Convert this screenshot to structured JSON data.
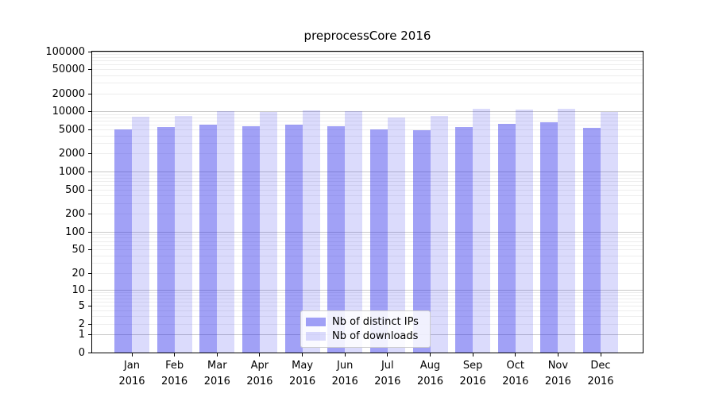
{
  "title": "preprocessCore 2016",
  "chart_data": {
    "type": "bar",
    "title": "preprocessCore 2016",
    "categories": [
      "Jan",
      "Feb",
      "Mar",
      "Apr",
      "May",
      "Jun",
      "Jul",
      "Aug",
      "Sep",
      "Oct",
      "Nov",
      "Dec"
    ],
    "year_label": "2016",
    "x_tick_labels": [
      "Jan 2016",
      "Feb 2016",
      "Mar 2016",
      "Apr 2016",
      "May 2016",
      "Jun 2016",
      "Jul 2016",
      "Aug 2016",
      "Sep 2016",
      "Oct 2016",
      "Nov 2016",
      "Dec 2016"
    ],
    "series": [
      {
        "name": "Nb of distinct IPs",
        "color": "#a2a2f0",
        "color_rgba": "rgba(40,40,235,0.44)",
        "values": [
          5100,
          5600,
          6200,
          5700,
          6200,
          5800,
          5100,
          4900,
          5600,
          6300,
          6800,
          5400
        ]
      },
      {
        "name": "Nb of downloads",
        "color": "#dadaf8",
        "color_rgba": "rgba(40,40,235,0.17)",
        "values": [
          8300,
          8700,
          10300,
          10000,
          10700,
          10200,
          8100,
          8500,
          11200,
          10900,
          11400,
          9900
        ]
      }
    ],
    "y_ticks": [
      0,
      1,
      2,
      5,
      10,
      20,
      50,
      100,
      200,
      500,
      1000,
      2000,
      5000,
      10000,
      20000,
      50000,
      100000
    ],
    "y_scale": "log1p",
    "ylim": [
      0,
      100000
    ],
    "grid": "both",
    "legend_position": "bottom-center-inside",
    "xlabel": "",
    "ylabel": ""
  },
  "legend": [
    {
      "label": "Nb of distinct IPs"
    },
    {
      "label": "Nb of downloads"
    }
  ],
  "colors": {
    "grid_major": "#c8c8c8",
    "grid_minor": "#ededed",
    "axis": "#000000",
    "background": "#ffffff"
  }
}
